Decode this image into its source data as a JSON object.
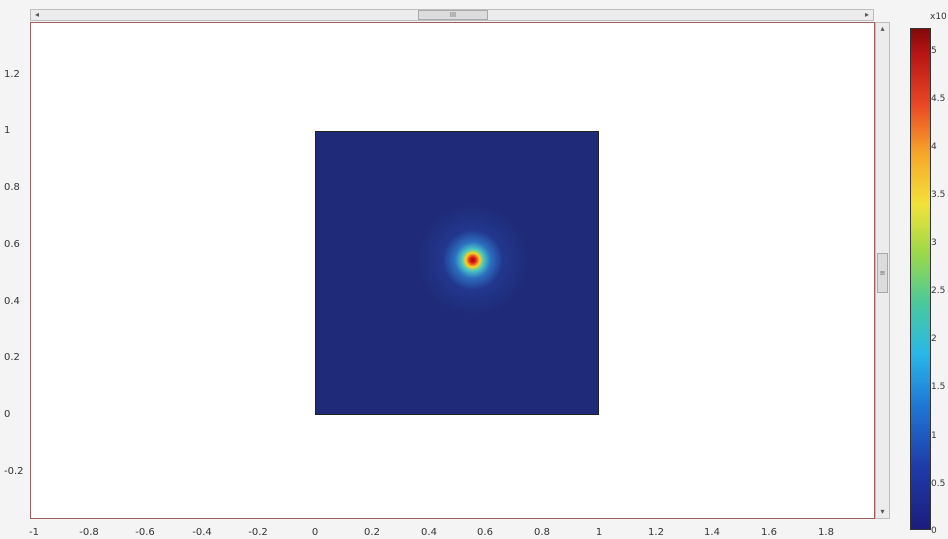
{
  "h_scroll": {
    "thumb_grip": "III",
    "left_arrow": "◂",
    "right_arrow": "▸"
  },
  "v_scroll": {
    "thumb_grip": "≡",
    "up_arrow": "▴",
    "down_arrow": "▾"
  },
  "x_ticks": [
    "-1",
    "-0.8",
    "-0.6",
    "-0.4",
    "-0.2",
    "0",
    "0.2",
    "0.4",
    "0.6",
    "0.8",
    "1",
    "1.2",
    "1.4",
    "1.6",
    "1.8"
  ],
  "y_ticks": [
    "1.2",
    "1",
    "0.8",
    "0.6",
    "0.4",
    "0.2",
    "0",
    "-0.2"
  ],
  "colorbar": {
    "exponent_label": "x10",
    "ticks": [
      "5",
      "4.5",
      "4",
      "3.5",
      "3",
      "2.5",
      "2",
      "1.5",
      "1",
      "0.5",
      "0"
    ]
  },
  "colors": {
    "domain_base": "#1f2b78",
    "peak": "#8b0b0b"
  }
}
